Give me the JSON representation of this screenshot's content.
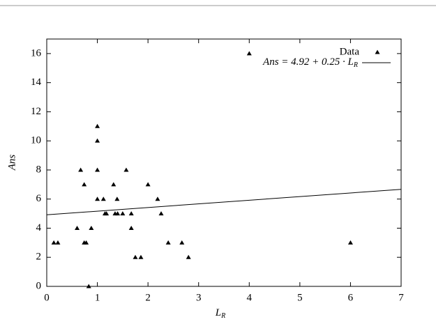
{
  "chart_data": {
    "type": "scatter",
    "xlabel": "L",
    "xlabel_sub": "R",
    "ylabel": "Ans",
    "x": [
      0.14,
      0.22,
      0.6,
      0.67,
      0.74,
      0.74,
      0.78,
      0.83,
      0.88,
      1.0,
      1.0,
      1.0,
      1.0,
      1.12,
      1.15,
      1.18,
      1.32,
      1.35,
      1.39,
      1.4,
      1.5,
      1.57,
      1.67,
      1.67,
      1.75,
      1.86,
      2.0,
      2.19,
      2.26,
      2.4,
      2.67,
      2.8,
      4.0,
      6.0
    ],
    "series": [
      {
        "name": "Data",
        "color": "#000000",
        "values": [
          3,
          3,
          4,
          8,
          7,
          3,
          3,
          0,
          4,
          11,
          10,
          8,
          6,
          6,
          5,
          5,
          7,
          5,
          6,
          5,
          5,
          8,
          5,
          4,
          2,
          2,
          7,
          6,
          5,
          3,
          3,
          2,
          16,
          3
        ]
      }
    ],
    "fit": {
      "name": "Ans = 4.92 + 0.25 · L",
      "name_sub": "R",
      "intercept": 4.92,
      "slope": 0.25,
      "color": "#000000"
    },
    "xlim": [
      0,
      7
    ],
    "xticks": [
      0,
      1,
      2,
      3,
      4,
      5,
      6,
      7
    ],
    "ylim": [
      0,
      17
    ],
    "yticks": [
      0,
      2,
      4,
      6,
      8,
      10,
      12,
      14,
      16
    ],
    "legend": "top-right"
  }
}
